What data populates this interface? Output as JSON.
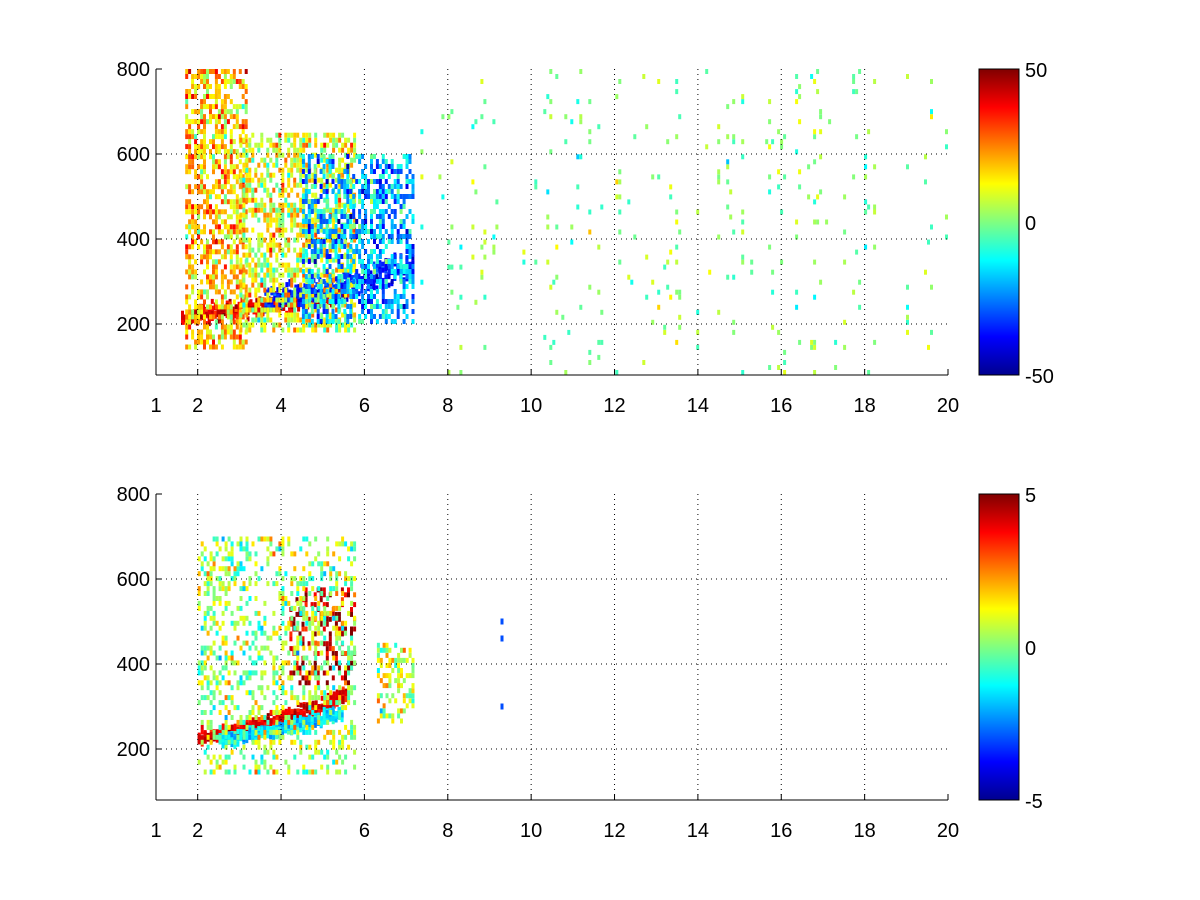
{
  "chart_data": [
    {
      "type": "heatmap",
      "x_ticks": [
        1,
        2,
        4,
        6,
        8,
        10,
        12,
        14,
        16,
        18,
        20
      ],
      "y_ticks": [
        200,
        400,
        600,
        800
      ],
      "xlim": [
        1,
        20
      ],
      "ylim": [
        80,
        800
      ],
      "grid": true,
      "colorbar": {
        "min": -50,
        "max": 50,
        "ticks": [
          50,
          0,
          -50
        ],
        "colormap": "jet"
      },
      "features": [
        {
          "kind": "ridge",
          "x": [
            1.6,
            2.0,
            3.0,
            4.0,
            5.0,
            5.6
          ],
          "y": [
            210,
            222,
            232,
            250,
            265,
            280
          ],
          "value": 40,
          "spread": 18
        },
        {
          "kind": "ridge",
          "x": [
            3.6,
            4.5,
            5.5,
            6.5,
            7.2
          ],
          "y": [
            250,
            270,
            290,
            320,
            340
          ],
          "value": -35,
          "spread": 25
        },
        {
          "kind": "region",
          "x": [
            1.7,
            3.2
          ],
          "y": [
            140,
            800
          ],
          "value": 18,
          "density": 0.55
        },
        {
          "kind": "region",
          "x": [
            3.0,
            5.8
          ],
          "y": [
            180,
            650
          ],
          "value": 10,
          "density": 0.55
        },
        {
          "kind": "region",
          "x": [
            4.5,
            7.2
          ],
          "y": [
            200,
            600
          ],
          "value": -20,
          "density": 0.5
        },
        {
          "kind": "sparse",
          "x": [
            7.2,
            20
          ],
          "y": [
            80,
            800
          ],
          "value": 0,
          "density": 0.06
        }
      ]
    },
    {
      "type": "heatmap",
      "x_ticks": [
        1,
        2,
        4,
        6,
        8,
        10,
        12,
        14,
        16,
        18,
        20
      ],
      "y_ticks": [
        200,
        400,
        600,
        800
      ],
      "xlim": [
        1,
        20
      ],
      "ylim": [
        80,
        800
      ],
      "grid": true,
      "colorbar": {
        "min": -5,
        "max": 5,
        "ticks": [
          5,
          0,
          -5
        ],
        "colormap": "jet"
      },
      "features": [
        {
          "kind": "ridge",
          "x": [
            2.0,
            3.0,
            4.0,
            5.0,
            5.6
          ],
          "y": [
            225,
            245,
            275,
            300,
            330
          ],
          "value": 4,
          "spread": 15
        },
        {
          "kind": "ridge",
          "x": [
            2.5,
            3.5,
            4.5,
            5.5
          ],
          "y": [
            220,
            235,
            260,
            285
          ],
          "value": -1.5,
          "spread": 15
        },
        {
          "kind": "region",
          "x": [
            4.2,
            5.8
          ],
          "y": [
            350,
            580
          ],
          "value": 4.5,
          "density": 0.35
        },
        {
          "kind": "region",
          "x": [
            2.0,
            5.8
          ],
          "y": [
            140,
            700
          ],
          "value": 0.3,
          "density": 0.3
        },
        {
          "kind": "region",
          "x": [
            6.3,
            7.2
          ],
          "y": [
            260,
            450
          ],
          "value": 0.8,
          "density": 0.45
        },
        {
          "kind": "points",
          "x": [
            9.3,
            9.3,
            9.3
          ],
          "y": [
            500,
            460,
            300
          ],
          "value": -3
        }
      ]
    }
  ]
}
